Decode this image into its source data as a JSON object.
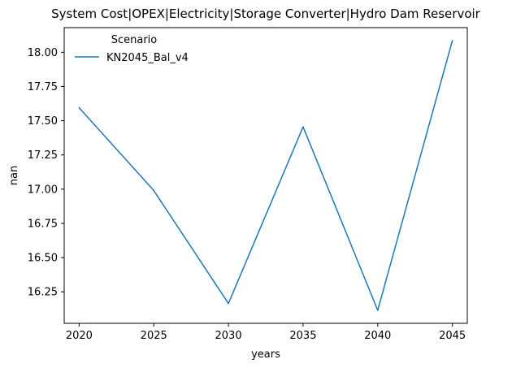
{
  "chart_data": {
    "type": "line",
    "title": "System Cost|OPEX|Electricity|Storage Converter|Hydro Dam Reservoir",
    "xlabel": "years",
    "ylabel": "nan",
    "x": [
      2020,
      2025,
      2030,
      2035,
      2040,
      2045
    ],
    "x_ticks": [
      "2020",
      "2025",
      "2030",
      "2035",
      "2040",
      "2045"
    ],
    "y_ticks": [
      "16.25",
      "16.50",
      "16.75",
      "17.00",
      "17.25",
      "17.50",
      "17.75",
      "18.00"
    ],
    "xlim": [
      2019,
      2046
    ],
    "ylim": [
      16.02,
      18.18
    ],
    "grid": false,
    "legend": {
      "title": "Scenario",
      "placement": "top-left"
    },
    "series": [
      {
        "name": "KN2045_Bal_v4",
        "color": "#1f77b4",
        "values": [
          17.595,
          16.99,
          16.165,
          17.455,
          16.115,
          18.085
        ]
      }
    ]
  }
}
